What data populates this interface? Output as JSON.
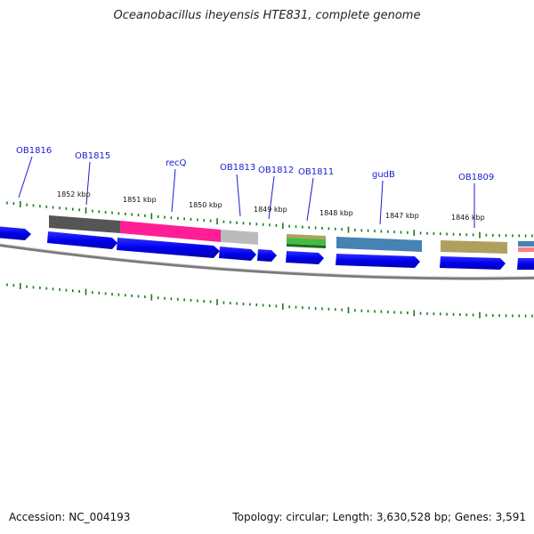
{
  "title": "Oceanobacillus iheyensis HTE831, complete genome",
  "footer": {
    "accession": "Accession: NC_004193",
    "summary": "Topology: circular; Length: 3,630,528 bp; Genes: 3,591"
  },
  "genome": {
    "length_bp": 3630528,
    "topology": "circular",
    "genes": 3591
  },
  "kbp_ticks": [
    "1852 kbp",
    "1851 kbp",
    "1850 kbp",
    "1849 kbp",
    "1848 kbp",
    "1847 kbp",
    "1846 kbp"
  ],
  "gene_labels": [
    "OB1816",
    "OB1815",
    "recQ",
    "OB1813",
    "OB1812",
    "OB1811",
    "gudB",
    "OB1809"
  ],
  "colors": {
    "cds": "#0000ee",
    "tick": "#1a7a1a",
    "backbone": "#888888",
    "label": "#1a1ad6",
    "feature_dark_gray": "#555555",
    "feature_pink": "#ff1e96",
    "feature_light_gray": "#bbbbbb",
    "feature_green": "#44bb44",
    "feature_steel_blue": "#4682b4",
    "feature_khaki": "#b0a060",
    "feature_coral": "#ff8080"
  }
}
